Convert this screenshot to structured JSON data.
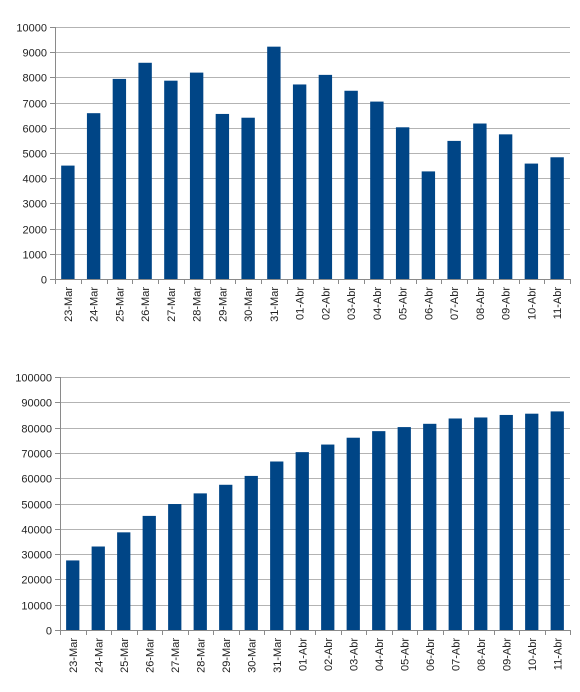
{
  "chart_data": [
    {
      "type": "bar",
      "categories": [
        "23-Mar",
        "24-Mar",
        "25-Mar",
        "26-Mar",
        "27-Mar",
        "28-Mar",
        "29-Mar",
        "30-Mar",
        "31-Mar",
        "01-Abr",
        "02-Abr",
        "03-Abr",
        "04-Abr",
        "05-Abr",
        "06-Abr",
        "07-Abr",
        "08-Abr",
        "09-Abr",
        "10-Abr",
        "11-Abr"
      ],
      "values": [
        4500,
        6580,
        7940,
        8580,
        7870,
        8190,
        6550,
        6400,
        9220,
        7720,
        8100,
        7470,
        7040,
        6020,
        4270,
        5480,
        6170,
        5740,
        4580,
        4830
      ],
      "ylim": [
        0,
        10000
      ],
      "yticks": [
        0,
        1000,
        2000,
        3000,
        4000,
        5000,
        6000,
        7000,
        8000,
        9000,
        10000
      ],
      "grid": true,
      "bar_color": "#004586"
    },
    {
      "type": "bar",
      "categories": [
        "23-Mar",
        "24-Mar",
        "25-Mar",
        "26-Mar",
        "27-Mar",
        "28-Mar",
        "29-Mar",
        "30-Mar",
        "31-Mar",
        "01-Abr",
        "02-Abr",
        "03-Abr",
        "04-Abr",
        "05-Abr",
        "06-Abr",
        "07-Abr",
        "08-Abr",
        "09-Abr",
        "10-Abr",
        "11-Abr"
      ],
      "values": [
        27500,
        33000,
        38600,
        45100,
        49800,
        54000,
        57400,
        60900,
        66600,
        70300,
        73300,
        76000,
        78600,
        80200,
        81500,
        83600,
        84000,
        85000,
        85500,
        86400
      ],
      "ylim": [
        0,
        100000
      ],
      "yticks": [
        0,
        10000,
        20000,
        30000,
        40000,
        50000,
        60000,
        70000,
        80000,
        90000,
        100000
      ],
      "grid": true,
      "bar_color": "#004586"
    }
  ]
}
